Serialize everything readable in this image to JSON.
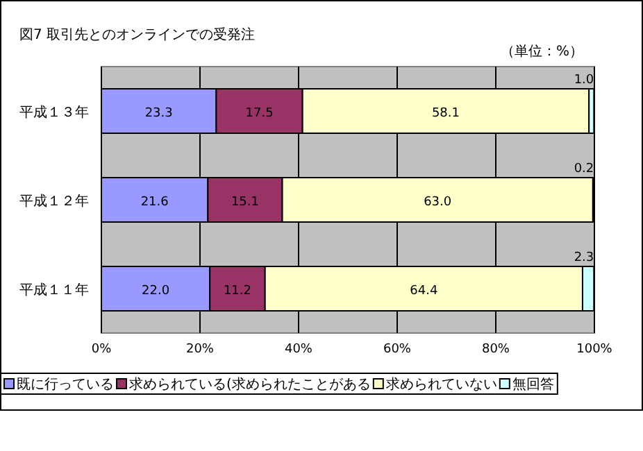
{
  "chart_data": {
    "type": "bar",
    "orientation": "horizontal",
    "stacked": true,
    "title": "図7  取引先とのオンラインでの受発注",
    "subtitle": "（単位：%）",
    "categories": [
      "平成１３年",
      "平成１２年",
      "平成１１年"
    ],
    "series": [
      {
        "name": "既に行っている",
        "color": "#9999ff",
        "values": [
          23.3,
          21.6,
          22.0
        ],
        "value_labels": [
          "23.3",
          "21.6",
          "22.0"
        ]
      },
      {
        "name": "求められている(求められたことがある",
        "color": "#993366",
        "values": [
          17.5,
          15.1,
          11.2
        ],
        "value_labels": [
          "17.5",
          "15.1",
          "11.2"
        ]
      },
      {
        "name": "求められていない",
        "color": "#ffffcc",
        "values": [
          58.1,
          63.0,
          64.4
        ],
        "value_labels": [
          "58.1",
          "63.0",
          "64.4"
        ]
      },
      {
        "name": "無回答",
        "color": "#ccffff",
        "values": [
          1.0,
          0.2,
          2.3
        ],
        "value_labels": [
          "1.0",
          "0.2",
          "2.3"
        ]
      }
    ],
    "xlim": [
      0,
      100
    ],
    "xticks": [
      {
        "value": 0,
        "label": "0%"
      },
      {
        "value": 20,
        "label": "20%"
      },
      {
        "value": 40,
        "label": "40%"
      },
      {
        "value": 60,
        "label": "60%"
      },
      {
        "value": 80,
        "label": "80%"
      },
      {
        "value": 100,
        "label": "100%"
      }
    ],
    "grid": "x",
    "legend": "bottom"
  }
}
